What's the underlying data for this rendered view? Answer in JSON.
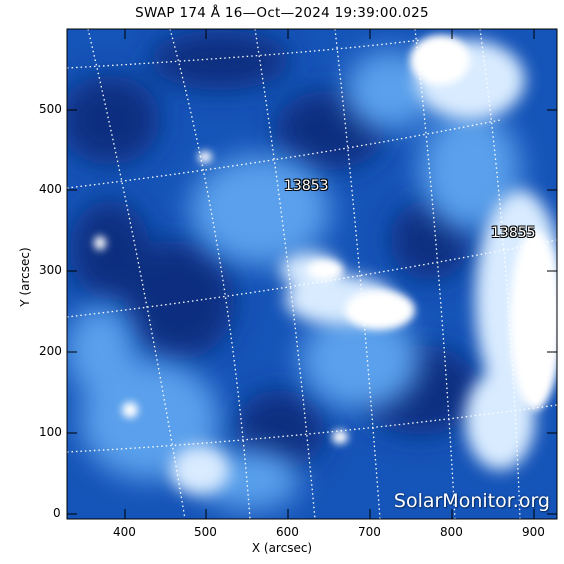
{
  "title": "SWAP 174 Å 16—Oct—2024 19:39:00.025",
  "xlabel": "X (arcsec)",
  "ylabel": "Y (arcsec)",
  "x_ticks": [
    "400",
    "500",
    "600",
    "700",
    "800",
    "900"
  ],
  "y_ticks": [
    "0",
    "100",
    "200",
    "300",
    "400",
    "500"
  ],
  "active_regions": [
    {
      "label": "13853"
    },
    {
      "label": "13855"
    }
  ],
  "watermark": "SolarMonitor.org",
  "colors": {
    "dark_blue": "#08306b",
    "mid_blue": "#1f6fd8",
    "light_blue": "#9cc8f5",
    "white": "#ffffff"
  }
}
